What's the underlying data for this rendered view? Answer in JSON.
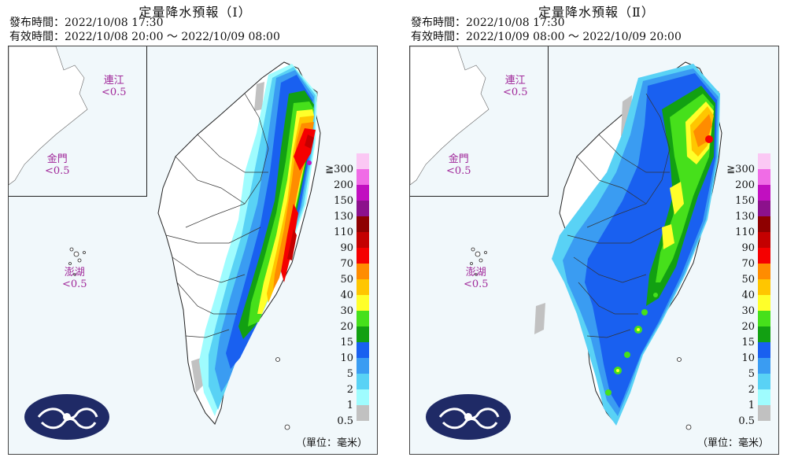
{
  "panels": [
    {
      "title": "定量降水預報（Ⅰ）",
      "issued": "發布時間：2022/10/08 17:30",
      "valid": "有效時間：2022/10/08 20:00 ～ 2022/10/09 08:00",
      "islands": [
        {
          "name": "連江",
          "value": "<0.5"
        },
        {
          "name": "金門",
          "value": "<0.5"
        },
        {
          "name": "澎湖",
          "value": "<0.5"
        }
      ],
      "unit": "（單位：毫米）"
    },
    {
      "title": "定量降水預報（Ⅱ）",
      "issued": "發布時間：2022/10/08 17:30",
      "valid": "有效時間：2022/10/09 08:00 ～ 2022/10/09 20:00",
      "islands": [
        {
          "name": "連江",
          "value": "<0.5"
        },
        {
          "name": "金門",
          "value": "<0.5"
        },
        {
          "name": "澎湖",
          "value": "<0.5"
        }
      ],
      "unit": "（單位：毫米）"
    }
  ],
  "legend": [
    {
      "label": "≧300",
      "color": "#fbc8f4"
    },
    {
      "label": "200",
      "color": "#f06ce6"
    },
    {
      "label": "150",
      "color": "#c10fc0"
    },
    {
      "label": "130",
      "color": "#8c118c"
    },
    {
      "label": "110",
      "color": "#8e0000"
    },
    {
      "label": "90",
      "color": "#c40000"
    },
    {
      "label": "70",
      "color": "#f50000"
    },
    {
      "label": "50",
      "color": "#ff8c00"
    },
    {
      "label": "40",
      "color": "#ffc600"
    },
    {
      "label": "30",
      "color": "#ffff2a"
    },
    {
      "label": "20",
      "color": "#46e01b"
    },
    {
      "label": "15",
      "color": "#12a012"
    },
    {
      "label": "10",
      "color": "#1960f0"
    },
    {
      "label": "5",
      "color": "#3a9cf2"
    },
    {
      "label": "2",
      "color": "#59d2f5"
    },
    {
      "label": "1",
      "color": "#9ffcfe"
    },
    {
      "label": "0.5",
      "color": "#c1c1c1"
    }
  ],
  "logo": {
    "icon": "cwb-logo-icon",
    "color": "#1f2a66"
  }
}
